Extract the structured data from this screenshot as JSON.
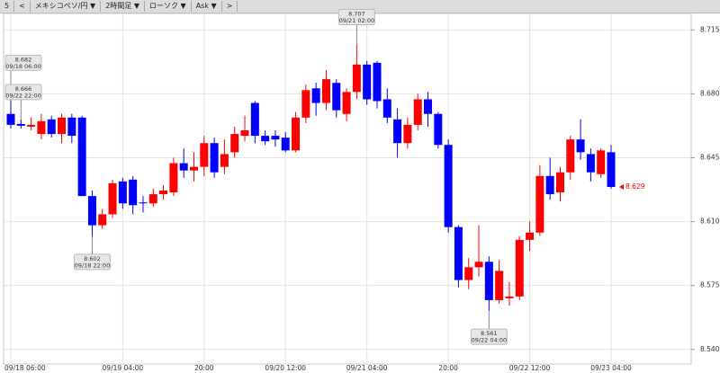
{
  "toolbar": {
    "items": [
      "5",
      "<",
      "メキシコペソ/円 ▼",
      "2時間足 ▼",
      "ローソク ▼",
      "Ask ▼",
      ">"
    ]
  },
  "chart_data": {
    "type": "candlestick",
    "categories": [
      "09/18 06:00",
      null,
      null,
      null,
      null,
      null,
      null,
      null,
      null,
      null,
      null,
      "09/19 04:00",
      null,
      null,
      null,
      null,
      null,
      null,
      null,
      "20:00",
      null,
      null,
      null,
      null,
      null,
      null,
      null,
      "09/20 12:00",
      null,
      null,
      null,
      null,
      null,
      null,
      null,
      "09/21 04:00",
      null,
      null,
      null,
      null,
      null,
      null,
      null,
      "20:00",
      null,
      null,
      null,
      null,
      null,
      null,
      null,
      "09/22 12:00",
      null,
      null,
      null,
      null,
      null,
      null,
      null,
      "09/23 04:00"
    ],
    "series": [
      {
        "name": "open",
        "values": [
          8.669,
          8.6635,
          8.662,
          8.658,
          8.666,
          8.658,
          8.667,
          8.667,
          8.624,
          8.608,
          8.614,
          8.632,
          8.633,
          8.6205,
          8.62,
          8.625,
          8.626,
          8.642,
          8.638,
          8.64,
          8.653,
          8.64,
          8.648,
          8.657,
          8.675,
          8.657,
          8.657,
          8.656,
          8.649,
          8.667,
          8.683,
          8.675,
          8.686,
          8.669,
          8.681,
          8.696,
          8.697,
          8.677,
          8.666,
          8.653,
          8.663,
          8.677,
          8.669,
          8.652,
          8.607,
          8.578,
          8.585,
          8.588,
          8.567,
          8.568,
          8.569,
          8.6,
          8.604,
          8.635,
          8.626,
          8.637,
          8.655,
          8.647,
          8.636,
          8.648
        ]
      },
      {
        "name": "high",
        "values": [
          8.682,
          8.666,
          8.667,
          8.669,
          8.668,
          8.669,
          8.669,
          8.668,
          8.627,
          8.617,
          8.633,
          8.634,
          8.635,
          8.624,
          8.628,
          8.63,
          8.645,
          8.65,
          8.648,
          8.657,
          8.656,
          8.655,
          8.662,
          8.668,
          8.676,
          8.66,
          8.66,
          8.659,
          8.67,
          8.685,
          8.686,
          8.693,
          8.688,
          8.683,
          8.707,
          8.698,
          8.698,
          8.683,
          8.672,
          8.667,
          8.68,
          8.681,
          8.67,
          8.655,
          8.608,
          8.59,
          8.608,
          8.591,
          8.589,
          8.577,
          8.602,
          8.61,
          8.641,
          8.645,
          8.64,
          8.657,
          8.666,
          8.65,
          8.65,
          8.652
        ]
      },
      {
        "name": "low",
        "values": [
          8.661,
          8.661,
          8.66,
          8.655,
          8.656,
          8.653,
          8.653,
          8.624,
          8.602,
          8.606,
          8.612,
          8.617,
          8.614,
          8.615,
          8.618,
          8.622,
          8.624,
          8.634,
          8.632,
          8.635,
          8.634,
          8.636,
          8.645,
          8.654,
          8.653,
          8.652,
          8.651,
          8.648,
          8.648,
          8.664,
          8.668,
          8.671,
          8.667,
          8.665,
          8.677,
          8.674,
          8.672,
          8.664,
          8.645,
          8.65,
          8.66,
          8.662,
          8.65,
          8.604,
          8.574,
          8.573,
          8.58,
          8.561,
          8.565,
          8.564,
          8.567,
          8.594,
          8.602,
          8.622,
          8.621,
          8.633,
          8.644,
          8.632,
          8.634,
          8.628
        ]
      },
      {
        "name": "close",
        "values": [
          8.663,
          8.6625,
          8.663,
          8.665,
          8.658,
          8.667,
          8.657,
          8.624,
          8.608,
          8.614,
          8.631,
          8.62,
          8.619,
          8.62,
          8.625,
          8.627,
          8.642,
          8.638,
          8.64,
          8.653,
          8.637,
          8.647,
          8.658,
          8.66,
          8.657,
          8.654,
          8.655,
          8.649,
          8.667,
          8.682,
          8.675,
          8.688,
          8.671,
          8.681,
          8.696,
          8.677,
          8.676,
          8.667,
          8.653,
          8.663,
          8.677,
          8.669,
          8.652,
          8.607,
          8.578,
          8.585,
          8.588,
          8.567,
          8.583,
          8.569,
          8.6,
          8.604,
          8.635,
          8.625,
          8.637,
          8.655,
          8.648,
          8.637,
          8.649,
          8.629
        ]
      }
    ],
    "up_color": "#ff0000",
    "down_color": "#0000ff",
    "ylim": [
      8.532,
      8.724
    ],
    "yticks": [
      8.715,
      {
        "value": 8.68,
        "label": "8.680"
      },
      8.645,
      {
        "value": 8.61,
        "label": "8.610"
      },
      8.575,
      {
        "value": 8.54,
        "label": "8.540"
      }
    ],
    "grid": true,
    "annotations": [
      {
        "value": 8.682,
        "time": "09/18 06:00"
      },
      {
        "value": 8.602,
        "time": "09/18 22:00"
      },
      {
        "value": 8.707,
        "time": "09/21 02:00"
      },
      {
        "value": 8.561,
        "time": "09/22 04:00"
      },
      {
        "value": 8.666,
        "time": "09/22 22:00"
      }
    ],
    "last_price": 8.629,
    "last_price_color": "#ff0000"
  }
}
